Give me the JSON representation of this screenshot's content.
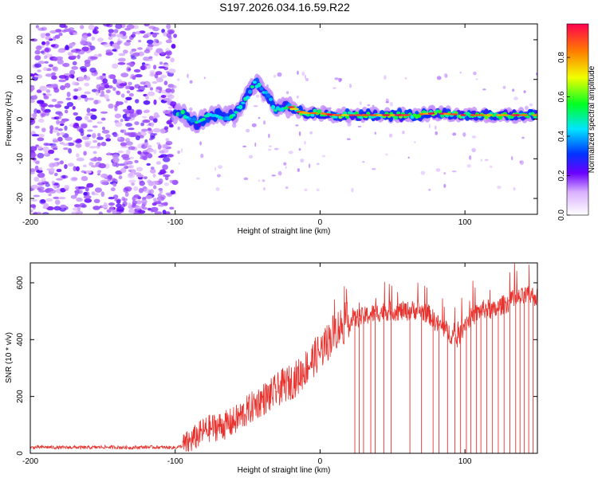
{
  "title": "S197.2026.034.16.59.R22",
  "colors": {
    "snr_line": "#e8322e",
    "axis": "#000000",
    "background": "#ffffff"
  },
  "chart_data": [
    {
      "type": "heatmap",
      "name": "spectrogram",
      "xlabel": "Height of straight line (km)",
      "ylabel": "Frequency (Hz)",
      "xlim": [
        -200,
        150
      ],
      "ylim": [
        -24,
        24
      ],
      "x_ticks": [
        -200,
        -100,
        0,
        100
      ],
      "x_tick_labels": [
        "-200",
        "-100",
        "0",
        "100"
      ],
      "y_ticks": [
        -20,
        -10,
        0,
        10,
        20
      ],
      "y_tick_labels": [
        "-20",
        "-10",
        "0",
        "10",
        "20"
      ],
      "colorbar": {
        "label": "Normalized spectral amplitude",
        "range": [
          0,
          0.97
        ],
        "ticks": [
          0,
          0.2,
          0.4,
          0.6,
          0.8
        ],
        "tick_labels": [
          "0.0",
          "0.2",
          "0.4",
          "0.6",
          "0.8"
        ]
      },
      "ridge": {
        "description": "dominant frequency track (Hz) vs height (km)",
        "x": [
          -100,
          -95,
          -90,
          -85,
          -80,
          -75,
          -70,
          -65,
          -60,
          -55,
          -50,
          -45,
          -40,
          -35,
          -30,
          -25,
          -20,
          -15,
          -10,
          -5,
          0,
          10,
          20,
          40,
          60,
          80,
          100,
          120,
          140,
          150
        ],
        "y": [
          1,
          1.5,
          0,
          -1,
          0,
          1,
          1,
          0.5,
          1,
          3,
          6,
          9,
          8,
          5,
          2,
          3,
          3,
          2,
          1.5,
          1.5,
          1.5,
          1,
          1,
          1,
          1,
          1.5,
          1,
          1,
          1,
          1
        ]
      },
      "noise_region": {
        "x_range": [
          -200,
          -100
        ],
        "description": "broadband noise across all frequencies"
      }
    },
    {
      "type": "line",
      "name": "snr",
      "xlabel": "Height of straight line (km)",
      "ylabel": "SNR (10 * v/v)",
      "xlim": [
        -200,
        150
      ],
      "ylim": [
        0,
        670
      ],
      "x_ticks": [
        -200,
        -100,
        0,
        100
      ],
      "x_tick_labels": [
        "-200",
        "-100",
        "0",
        "100"
      ],
      "y_ticks": [
        0,
        200,
        400,
        600
      ],
      "y_tick_labels": [
        "0",
        "200",
        "400",
        "600"
      ],
      "series": [
        {
          "name": "SNR",
          "x": [
            -200,
            -190,
            -180,
            -170,
            -160,
            -150,
            -140,
            -130,
            -120,
            -110,
            -100,
            -95,
            -90,
            -85,
            -80,
            -75,
            -70,
            -65,
            -60,
            -55,
            -50,
            -45,
            -40,
            -35,
            -30,
            -25,
            -20,
            -15,
            -10,
            -5,
            0,
            5,
            10,
            15,
            20,
            25,
            30,
            35,
            40,
            45,
            50,
            55,
            60,
            65,
            70,
            75,
            80,
            85,
            90,
            95,
            100,
            105,
            110,
            115,
            120,
            125,
            130,
            135,
            140,
            145,
            150
          ],
          "values": [
            20,
            22,
            20,
            21,
            20,
            22,
            21,
            20,
            22,
            21,
            20,
            25,
            40,
            60,
            80,
            90,
            95,
            100,
            110,
            130,
            150,
            170,
            190,
            200,
            220,
            240,
            250,
            270,
            300,
            330,
            360,
            390,
            430,
            450,
            460,
            475,
            480,
            490,
            495,
            500,
            500,
            500,
            500,
            505,
            500,
            490,
            460,
            440,
            420,
            400,
            460,
            480,
            500,
            510,
            500,
            520,
            530,
            540,
            550,
            555,
            550
          ]
        }
      ],
      "dropouts_x": [
        24,
        27,
        30,
        35,
        38,
        44,
        49,
        62,
        70,
        78,
        82,
        88,
        93,
        97,
        101,
        104,
        108,
        111,
        115,
        119,
        123,
        127,
        131,
        135,
        138,
        141,
        144,
        147
      ]
    }
  ]
}
